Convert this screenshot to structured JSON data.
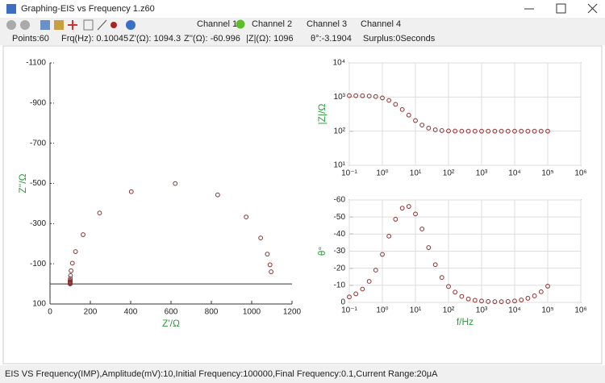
{
  "window": {
    "title": "Graphing-EIS vs Frequency 1.z60"
  },
  "channels": [
    "Channel 1",
    "Channel 2",
    "Channel 3",
    "Channel 4"
  ],
  "info": [
    "Points:60",
    "Frq(Hz): 0.10045",
    "Z'(Ω): 1094.3",
    "Z''(Ω): -60.996",
    "|Z|(Ω): 1096",
    "θ°:-3.1904",
    "Surplus:0Seconds"
  ],
  "status_bar": "EIS VS Frequency(IMP),Amplitude(mV):10,Initial Frequency:100000,Final Frequency:0.1,Current Range:20μA",
  "chart_data": [
    {
      "type": "scatter",
      "xlabel": "Z'/Ω",
      "ylabel": "Z''/Ω",
      "x": [
        1096.3,
        1090.9,
        1077.5,
        1044.6,
        972.6,
        831.5,
        621,
        403,
        245.8,
        164.1,
        126.5,
        110.8,
        104.3,
        101.7,
        100.7,
        100.3,
        100.1,
        100,
        100,
        100,
        100,
        100,
        100,
        100,
        100,
        100,
        100,
        100,
        100,
        100,
        100
      ],
      "series": [
        {
          "color": "#8b2f2f",
          "values": [
            -60.4,
            -94.9,
            -148,
            -228.6,
            -333,
            -443,
            -499.5,
            -459,
            -353,
            -244.9,
            -160.7,
            -103.2,
            -65.5,
            -41.2,
            -26.2,
            -16.5,
            -10.5,
            -6.1,
            -3.5,
            -2.1,
            -1.4,
            -0.9,
            -0.7,
            -0.7,
            -0.9,
            -1.4,
            -2.4,
            -4.2,
            -6.6,
            -10.9,
            -16.7
          ]
        }
      ],
      "xlim": [
        0,
        1200
      ],
      "xticks": [
        0,
        200,
        400,
        600,
        800,
        1000,
        1200
      ],
      "ylim": [
        100,
        -1100
      ],
      "yticks": [
        -1100,
        -900,
        -700,
        -500,
        -300,
        -100,
        100
      ],
      "grid": false
    },
    {
      "type": "scatter",
      "ylabel": "|Z|/Ω",
      "xscale": "log",
      "yscale": "log",
      "x": [
        0.1,
        0.158,
        0.25,
        0.4,
        0.63,
        1,
        1.58,
        2.5,
        4,
        6.3,
        10,
        15.8,
        25,
        40,
        63,
        100,
        158,
        251,
        398,
        631,
        1000,
        1585,
        2512,
        3981,
        6310,
        10000,
        15849,
        25119,
        39811,
        63096,
        100000
      ],
      "series": [
        {
          "color": "#8b2f2f",
          "values": [
            1098,
            1095,
            1088,
            1069,
            1028,
            942,
            797,
            611,
            430,
            295,
            204,
            151,
            123,
            109.7,
            104,
            101.6,
            100.6,
            100.2,
            100.1,
            100,
            100,
            100,
            100,
            100,
            100,
            100,
            100,
            100,
            100,
            100,
            100
          ]
        }
      ],
      "xlim": [
        0.1,
        1000000
      ],
      "xticks": [
        {
          "value": 0.1,
          "label": "10⁻¹"
        },
        {
          "value": 1,
          "label": "10⁰"
        },
        {
          "value": 10,
          "label": "10¹"
        },
        {
          "value": 100,
          "label": "10²"
        },
        {
          "value": 1000,
          "label": "10³"
        },
        {
          "value": 10000,
          "label": "10⁴"
        },
        {
          "value": 100000,
          "label": "10⁵"
        },
        {
          "value": 1000000,
          "label": "10⁶"
        }
      ],
      "ylim": [
        10,
        10000
      ],
      "yticks": [
        {
          "value": 10,
          "label": "10¹"
        },
        {
          "value": 100,
          "label": "10²"
        },
        {
          "value": 1000,
          "label": "10³"
        },
        {
          "value": 10000,
          "label": "10⁴"
        }
      ],
      "grid": true
    },
    {
      "type": "scatter",
      "xlabel": "f/Hz",
      "ylabel": "θ°",
      "xscale": "log",
      "x": [
        0.1,
        0.158,
        0.25,
        0.4,
        0.63,
        1,
        1.58,
        2.5,
        4,
        6.3,
        10,
        15.8,
        25,
        40,
        63,
        100,
        158,
        251,
        398,
        631,
        1000,
        1585,
        2512,
        3981,
        6310,
        10000,
        15849,
        25119,
        39811,
        63096,
        100000
      ],
      "series": [
        {
          "color": "#8b2f2f",
          "values": [
            -3.2,
            -5.0,
            -7.8,
            -12.3,
            -18.9,
            -28.1,
            -38.8,
            -48.7,
            -55.2,
            -56.2,
            -51.8,
            -43.0,
            -32.1,
            -22.1,
            -14.6,
            -9.3,
            -6,
            -3.5,
            -2,
            -1.2,
            -0.8,
            -0.5,
            -0.4,
            -0.4,
            -0.5,
            -0.8,
            -1.4,
            -2.4,
            -3.8,
            -6.2,
            -9.5
          ]
        }
      ],
      "xlim": [
        0.1,
        1000000
      ],
      "xticks": [
        {
          "value": 0.1,
          "label": "10⁻¹"
        },
        {
          "value": 1,
          "label": "10⁰"
        },
        {
          "value": 10,
          "label": "10¹"
        },
        {
          "value": 100,
          "label": "10²"
        },
        {
          "value": 1000,
          "label": "10³"
        },
        {
          "value": 10000,
          "label": "10⁴"
        },
        {
          "value": 100000,
          "label": "10⁵"
        },
        {
          "value": 1000000,
          "label": "10⁶"
        }
      ],
      "ylim": [
        0,
        -60
      ],
      "yticks": [
        -60,
        -50,
        -40,
        -30,
        -20,
        -10,
        0
      ],
      "grid": true
    }
  ]
}
